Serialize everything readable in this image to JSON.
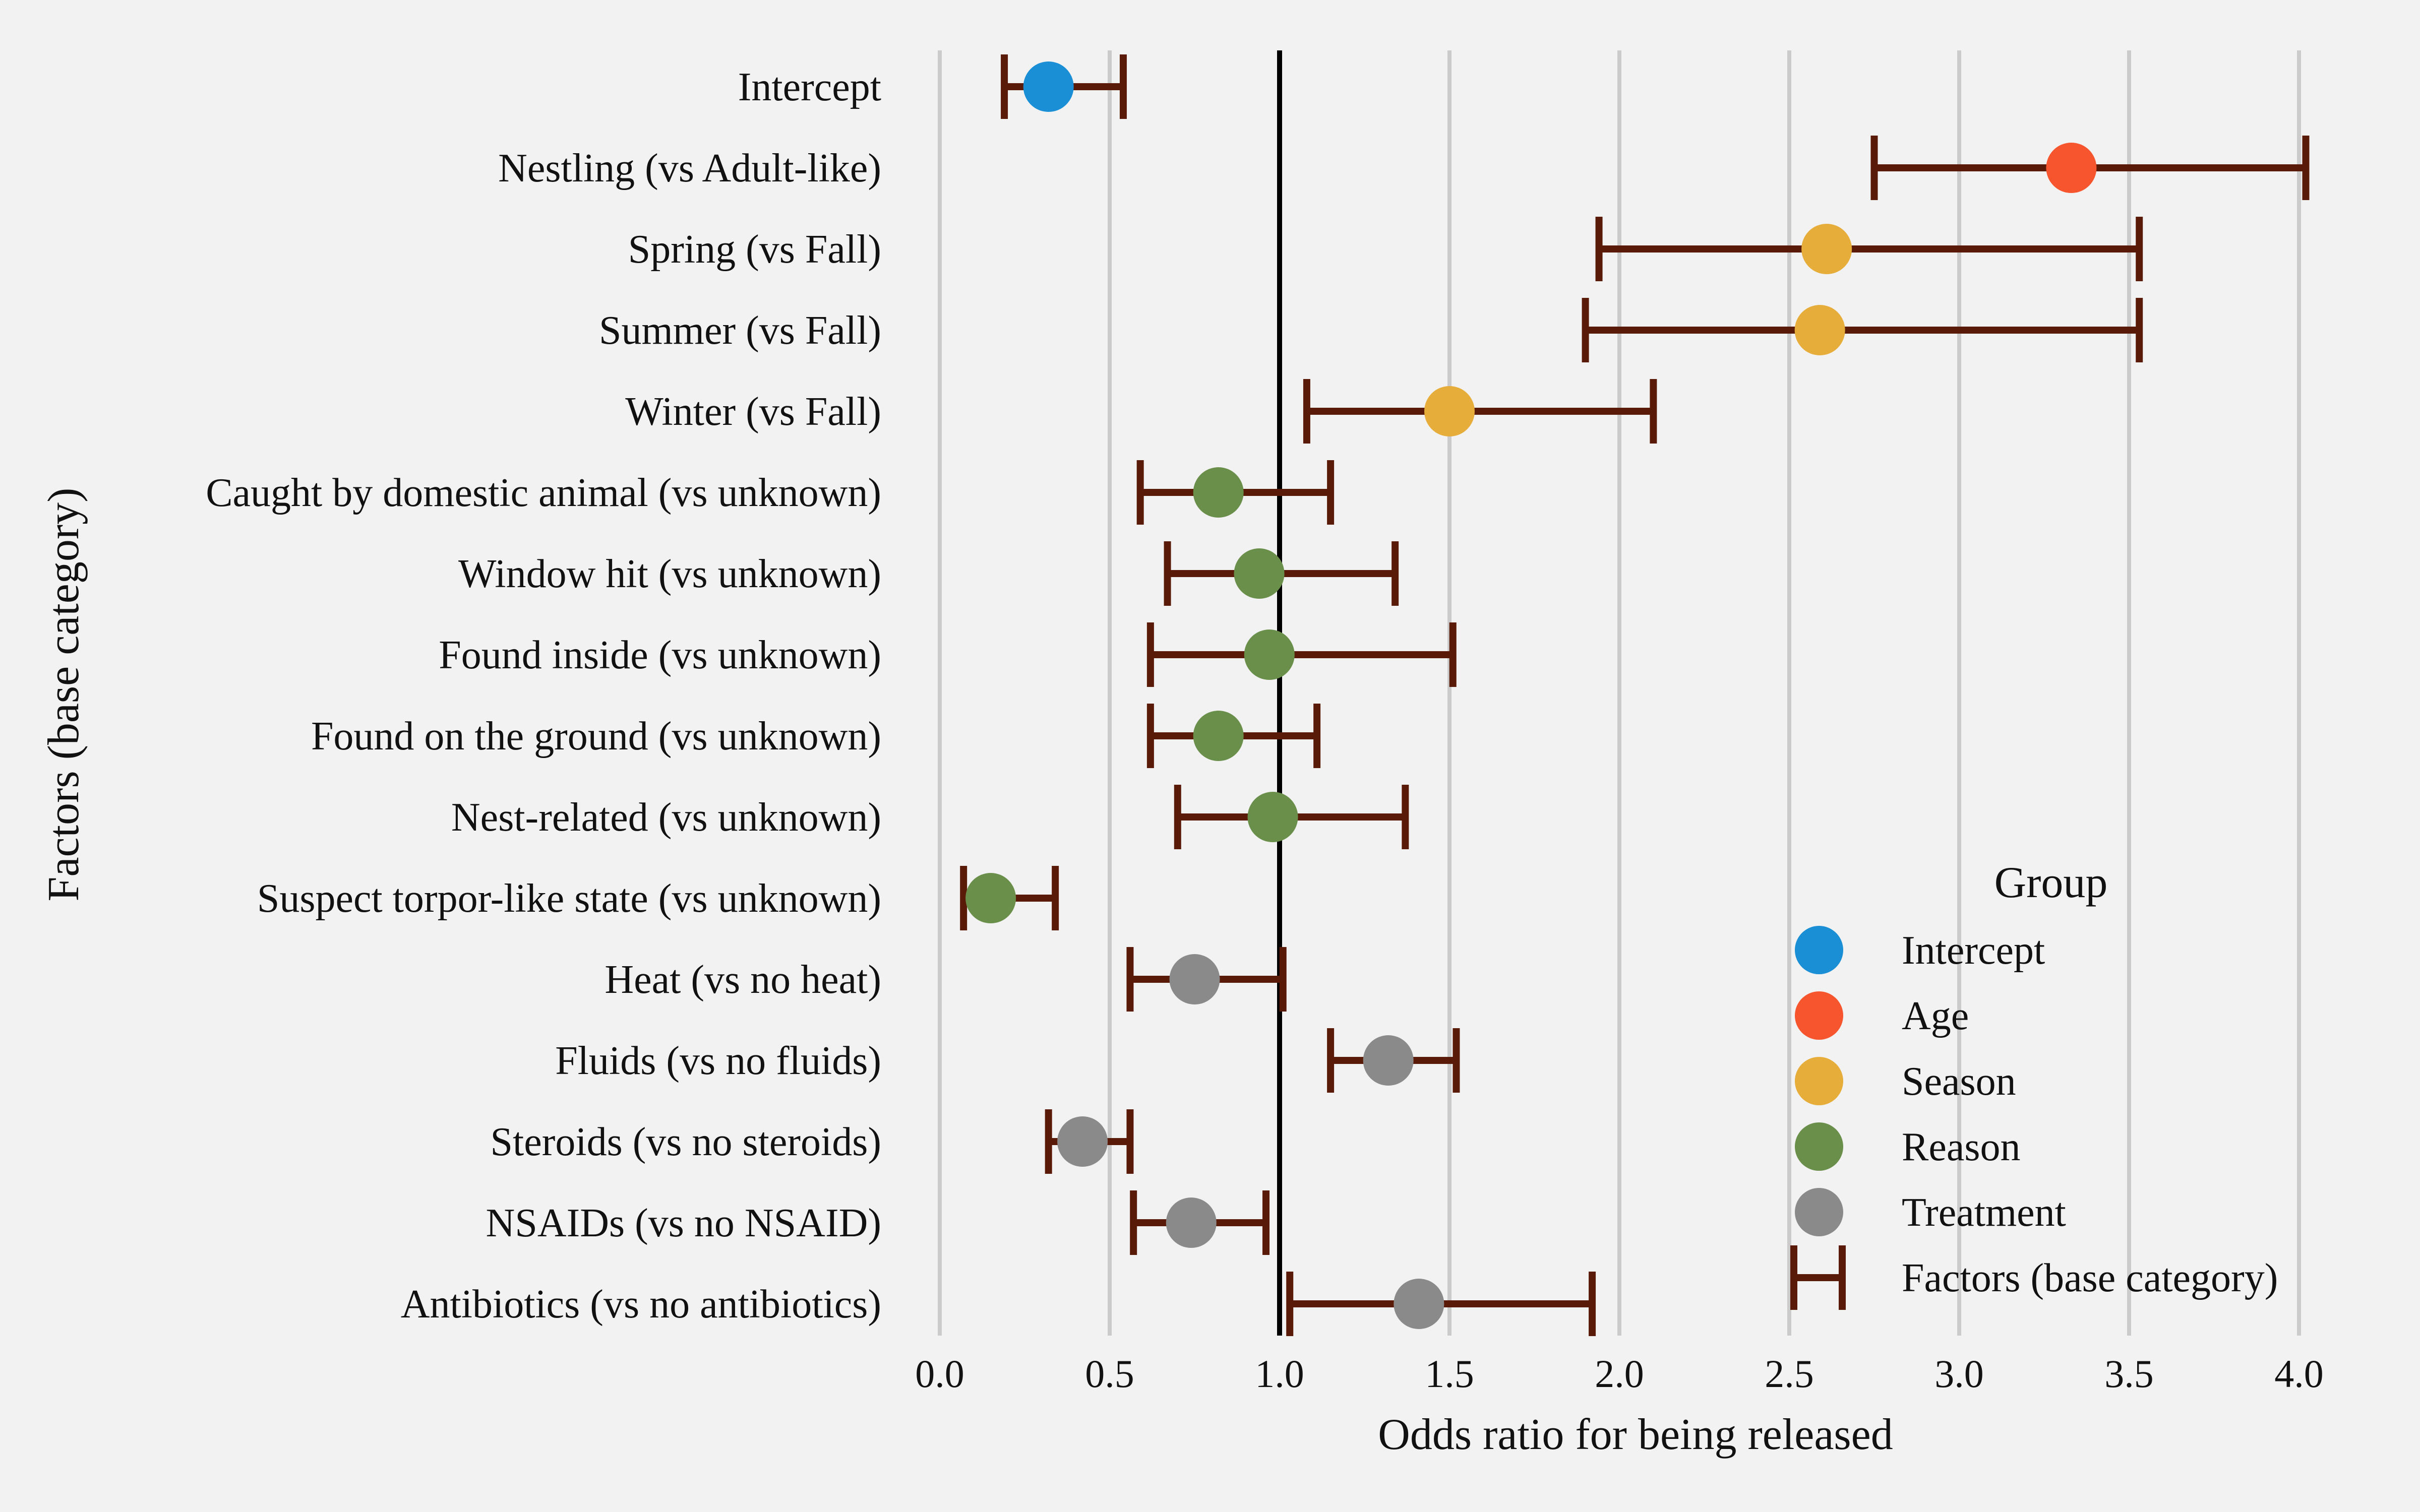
{
  "chart_data": {
    "type": "forest",
    "xlabel": "Odds ratio for being released",
    "ylabel": "Factors (base category)",
    "xlim": [
      0.0,
      4.0
    ],
    "xticks": [
      "0.0",
      "0.5",
      "1.0",
      "1.5",
      "2.0",
      "2.5",
      "3.0",
      "3.5",
      "4.0"
    ],
    "reference_line": 1.0,
    "grid": "vertical",
    "ci_color": "#5a1a08",
    "rows": [
      {
        "label": "Intercept",
        "group": "Intercept",
        "estimate": 0.32,
        "lower": 0.19,
        "upper": 0.54
      },
      {
        "label": "Nestling (vs Adult-like)",
        "group": "Age",
        "estimate": 3.33,
        "lower": 2.75,
        "upper": 4.02
      },
      {
        "label": "Spring (vs Fall)",
        "group": "Season",
        "estimate": 2.61,
        "lower": 1.94,
        "upper": 3.53
      },
      {
        "label": "Summer (vs Fall)",
        "group": "Season",
        "estimate": 2.59,
        "lower": 1.9,
        "upper": 3.53
      },
      {
        "label": "Winter (vs Fall)",
        "group": "Season",
        "estimate": 1.5,
        "lower": 1.08,
        "upper": 2.1
      },
      {
        "label": "Caught by domestic animal (vs unknown)",
        "group": "Reason",
        "estimate": 0.82,
        "lower": 0.59,
        "upper": 1.15
      },
      {
        "label": "Window hit (vs unknown)",
        "group": "Reason",
        "estimate": 0.94,
        "lower": 0.67,
        "upper": 1.34
      },
      {
        "label": "Found inside (vs unknown)",
        "group": "Reason",
        "estimate": 0.97,
        "lower": 0.62,
        "upper": 1.51
      },
      {
        "label": "Found on the ground (vs unknown)",
        "group": "Reason",
        "estimate": 0.82,
        "lower": 0.62,
        "upper": 1.11
      },
      {
        "label": "Nest-related (vs unknown)",
        "group": "Reason",
        "estimate": 0.98,
        "lower": 0.7,
        "upper": 1.37
      },
      {
        "label": "Suspect torpor-like state (vs unknown)",
        "group": "Reason",
        "estimate": 0.15,
        "lower": 0.07,
        "upper": 0.34
      },
      {
        "label": "Heat (vs no heat)",
        "group": "Treatment",
        "estimate": 0.75,
        "lower": 0.56,
        "upper": 1.01
      },
      {
        "label": "Fluids (vs no fluids)",
        "group": "Treatment",
        "estimate": 1.32,
        "lower": 1.15,
        "upper": 1.52
      },
      {
        "label": "Steroids (vs no steroids)",
        "group": "Treatment",
        "estimate": 0.42,
        "lower": 0.32,
        "upper": 0.56
      },
      {
        "label": "NSAIDs (vs no NSAID)",
        "group": "Treatment",
        "estimate": 0.74,
        "lower": 0.57,
        "upper": 0.96
      },
      {
        "label": "Antibiotics (vs no antibiotics)",
        "group": "Treatment",
        "estimate": 1.41,
        "lower": 1.03,
        "upper": 1.92
      }
    ],
    "legend": {
      "title": "Group",
      "placement": "bottom-right",
      "entries": [
        {
          "label": "Intercept",
          "color": "#1a8fd6",
          "marker": "circle"
        },
        {
          "label": "Age",
          "color": "#f7552e",
          "marker": "circle"
        },
        {
          "label": "Season",
          "color": "#e6ad3a",
          "marker": "circle"
        },
        {
          "label": "Reason",
          "color": "#6a8f4a",
          "marker": "circle"
        },
        {
          "label": "Treatment",
          "color": "#8a8a8a",
          "marker": "circle"
        },
        {
          "label": "Factors (base category)",
          "color": "#5a1a08",
          "marker": "errorbar"
        }
      ]
    }
  }
}
